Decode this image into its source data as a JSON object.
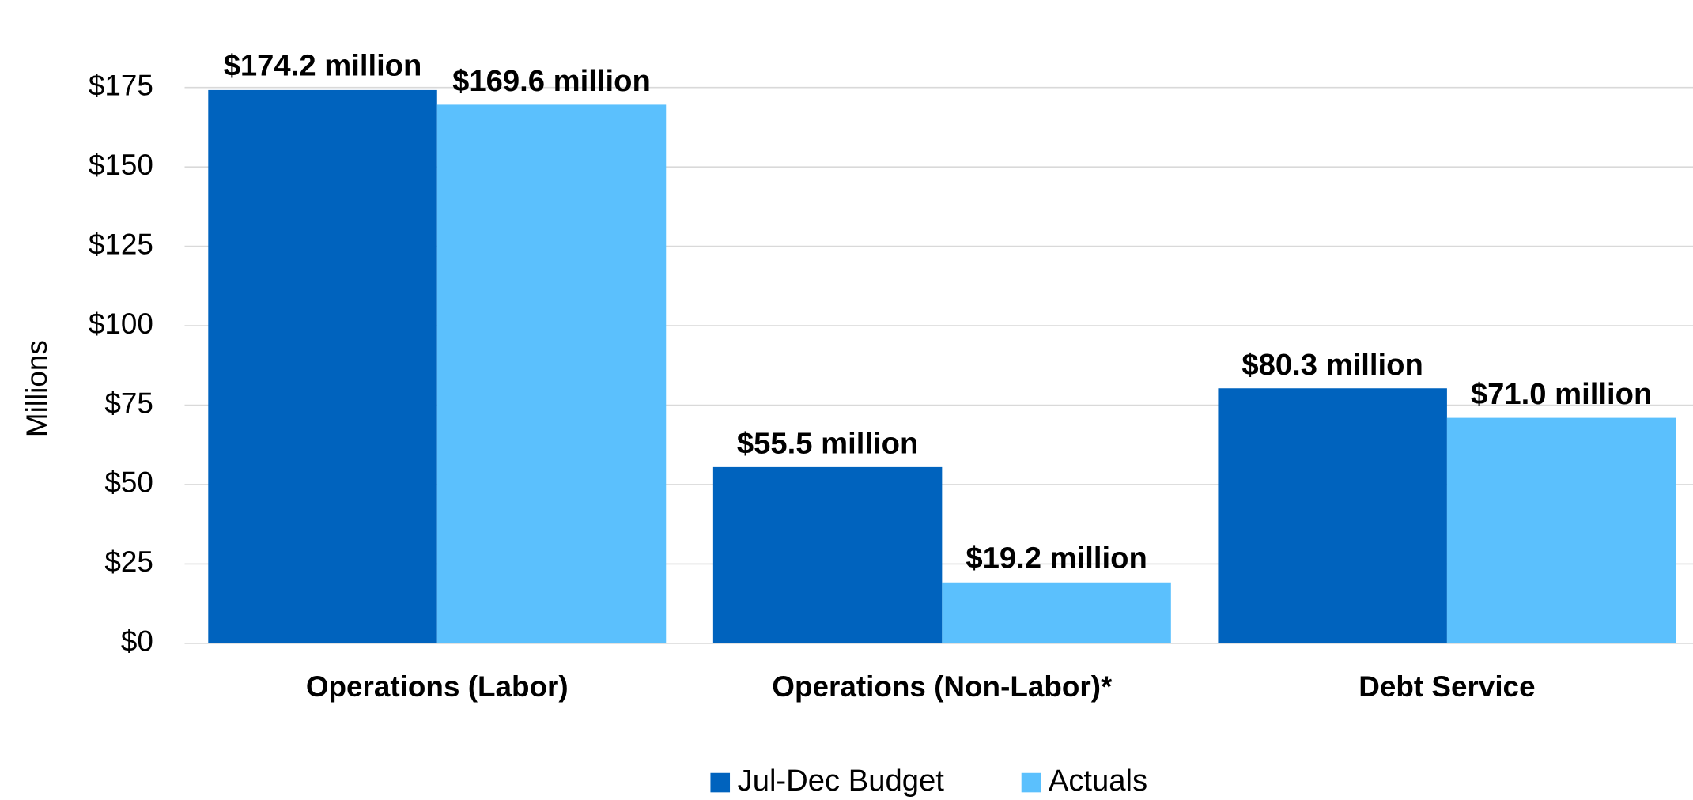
{
  "chart_data": {
    "type": "bar",
    "y_label": "Millions",
    "categories": [
      "Operations (Labor)",
      "Operations (Non-Labor)*",
      "Debt Service"
    ],
    "series": [
      {
        "name": "Jul-Dec Budget",
        "color": "#0063be",
        "values": [
          174.2,
          55.5,
          80.3
        ],
        "value_labels": [
          "$174.2 million",
          "$55.5 million",
          "$80.3 million"
        ]
      },
      {
        "name": "Actuals",
        "color": "#5bc0fd",
        "values": [
          169.6,
          19.2,
          71.0
        ],
        "value_labels": [
          "$169.6 million",
          "$19.2 million",
          "$71.0 million"
        ]
      }
    ],
    "ylim": [
      0,
      175
    ],
    "yticks": [
      {
        "value": 0,
        "label": "$0"
      },
      {
        "value": 25,
        "label": "$25"
      },
      {
        "value": 50,
        "label": "$50"
      },
      {
        "value": 75,
        "label": "$75"
      },
      {
        "value": 100,
        "label": "$100"
      },
      {
        "value": 125,
        "label": "$125"
      },
      {
        "value": 150,
        "label": "$150"
      },
      {
        "value": 175,
        "label": "$175"
      }
    ],
    "grid": true,
    "legend": "bottom"
  }
}
